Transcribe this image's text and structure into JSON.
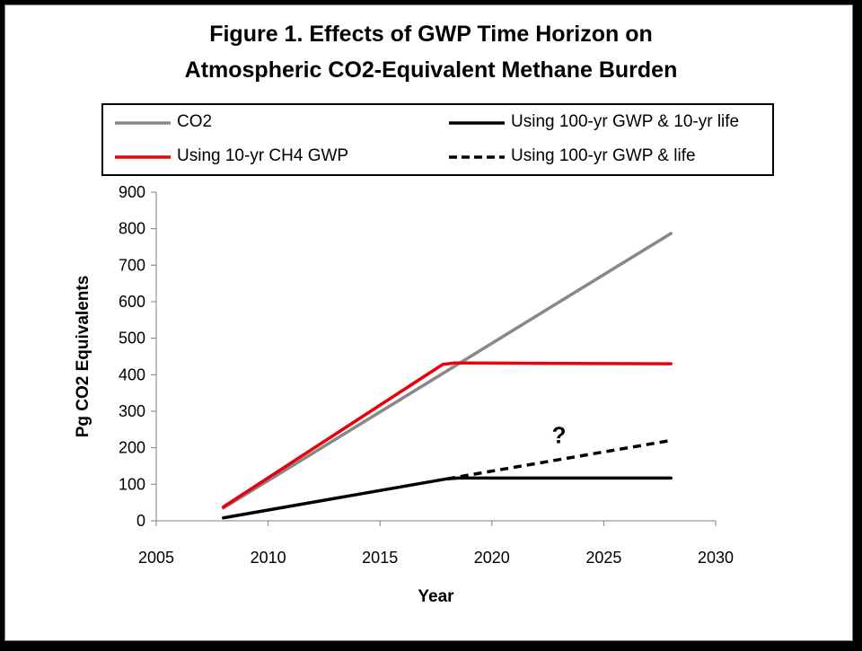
{
  "title_lines": [
    "Figure 1.  Effects of GWP Time Horizon on",
    "Atmospheric CO2-Equivalent Methane Burden"
  ],
  "legend": [
    {
      "label": "CO2",
      "color": "#888888",
      "style": "solid"
    },
    {
      "label": "Using 100-yr GWP & 10-yr life",
      "color": "#000000",
      "style": "solid"
    },
    {
      "label": "Using 10-yr CH4 GWP",
      "color": "#e8000b",
      "style": "solid"
    },
    {
      "label": "Using 100-yr GWP &  life",
      "color": "#000000",
      "style": "dashed"
    }
  ],
  "chart_data": {
    "type": "line",
    "title": "Figure 1.  Effects of GWP Time Horizon on Atmospheric CO2-Equivalent Methane Burden",
    "xlabel": "Year",
    "ylabel": "Pg CO2 Equivalents",
    "xlim": [
      2005,
      2030
    ],
    "ylim": [
      0,
      900
    ],
    "xticks": [
      2005,
      2010,
      2015,
      2020,
      2025,
      2030
    ],
    "yticks": [
      0,
      100,
      200,
      300,
      400,
      500,
      600,
      700,
      800,
      900
    ],
    "grid": false,
    "legend_position": "top",
    "annotations": [
      {
        "text": "?",
        "x": 2023,
        "y": 235
      }
    ],
    "series": [
      {
        "name": "CO2",
        "color": "#888888",
        "style": "solid",
        "x": [
          2008,
          2028
        ],
        "y": [
          35,
          787
        ]
      },
      {
        "name": "Using 10-yr CH4 GWP",
        "color": "#e8000b",
        "style": "solid",
        "x": [
          2008,
          2017.8,
          2018.3,
          2028
        ],
        "y": [
          38,
          428,
          432,
          430
        ]
      },
      {
        "name": "Using 100-yr GWP & 10-yr life",
        "color": "#000000",
        "style": "solid",
        "x": [
          2008,
          2018,
          2018.5,
          2028
        ],
        "y": [
          8,
          115,
          117,
          117
        ]
      },
      {
        "name": "Using 100-yr GWP &  life",
        "color": "#000000",
        "style": "dashed",
        "x": [
          2018,
          2028
        ],
        "y": [
          115,
          220
        ]
      }
    ]
  }
}
